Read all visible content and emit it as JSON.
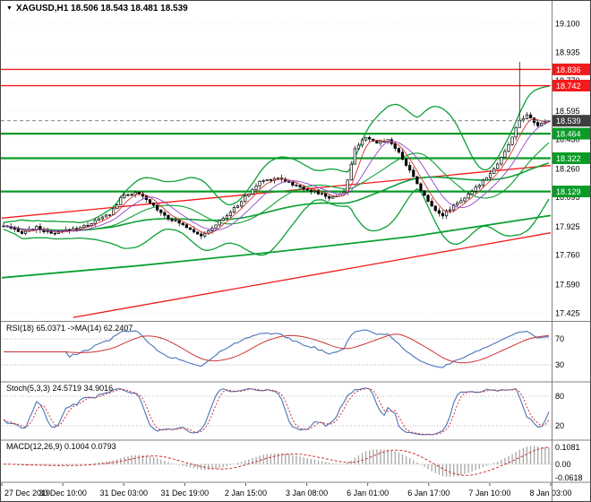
{
  "title": {
    "dropdown_icon": "▼",
    "symbol_ohlc": "XAGUSD,H1 18.506 18.543 18.481 18.539"
  },
  "colors": {
    "background": "#ffffff",
    "panel_border": "#808080",
    "axis_text": "#000000",
    "candle_up_fill": "#ffffff",
    "candle_down_fill": "#000000",
    "candle_border": "#000000",
    "ma_green": "#0da035",
    "resistance": "#f21b1b",
    "support": "#0a9b27",
    "current_badge": "#3f3f3f",
    "current_line": "#888888",
    "thin_red": "#d23333",
    "thin_purple": "#8f46c8",
    "rsi_line": "#4a72b8",
    "stoch_line": "#4a72b8",
    "signal_red": "#cc3333",
    "macd_hist": "#a6a6a6",
    "level_dotted": "#b5b5b5"
  },
  "chart_data": {
    "type": "candlestick",
    "symbol": "XAGUSD",
    "timeframe": "H1",
    "last_ohlc": {
      "open": 18.506,
      "high": 18.543,
      "low": 18.481,
      "close": 18.539
    },
    "bars": 150,
    "price_axis": {
      "range": [
        17.385,
        19.16
      ],
      "ticks": [
        {
          "label": "19.100",
          "value": 19.1
        },
        {
          "label": "18.935",
          "value": 18.935
        },
        {
          "label": "18.770",
          "value": 18.77
        },
        {
          "label": "18.595",
          "value": 18.595
        },
        {
          "label": "18.430",
          "value": 18.43
        },
        {
          "label": "18.260",
          "value": 18.26
        },
        {
          "label": "18.095",
          "value": 18.095
        },
        {
          "label": "17.925",
          "value": 17.925
        },
        {
          "label": "17.760",
          "value": 17.76
        },
        {
          "label": "17.590",
          "value": 17.59
        },
        {
          "label": "17.425",
          "value": 17.425
        }
      ]
    },
    "badges": [
      {
        "label": "18.836",
        "value": 18.836,
        "color": "#f21b1b"
      },
      {
        "label": "18.742",
        "value": 18.742,
        "color": "#f21b1b"
      },
      {
        "label": "18.539",
        "value": 18.539,
        "color": "#3f3f3f"
      },
      {
        "label": "18.464",
        "value": 18.464,
        "color": "#0a9b27"
      },
      {
        "label": "18.322",
        "value": 18.322,
        "color": "#0a9b27"
      },
      {
        "label": "18.129",
        "value": 18.129,
        "color": "#0a9b27"
      }
    ],
    "levels": {
      "resistance": [
        18.836,
        18.742
      ],
      "support": [
        18.464,
        18.322,
        18.129
      ],
      "current": 18.539
    },
    "trendlines": [
      {
        "from": [
          0.0,
          17.975
        ],
        "to": [
          1.0,
          18.28
        ]
      },
      {
        "from": [
          0.13,
          17.4
        ],
        "to": [
          1.0,
          17.89
        ]
      }
    ],
    "slow_ma_anchors": [
      [
        0.0,
        17.63
      ],
      [
        0.25,
        17.7
      ],
      [
        0.5,
        17.78
      ],
      [
        0.75,
        17.87
      ],
      [
        1.0,
        17.99
      ]
    ],
    "price_path_anchors": [
      [
        0.0,
        17.93
      ],
      [
        0.03,
        17.89
      ],
      [
        0.06,
        17.92
      ],
      [
        0.09,
        17.88
      ],
      [
        0.11,
        17.9
      ],
      [
        0.15,
        17.93
      ],
      [
        0.195,
        18.0
      ],
      [
        0.22,
        18.11
      ],
      [
        0.245,
        18.12
      ],
      [
        0.27,
        18.06
      ],
      [
        0.3,
        17.98
      ],
      [
        0.333,
        17.93
      ],
      [
        0.366,
        17.87
      ],
      [
        0.39,
        17.94
      ],
      [
        0.42,
        18.02
      ],
      [
        0.447,
        18.11
      ],
      [
        0.472,
        18.19
      ],
      [
        0.505,
        18.21
      ],
      [
        0.537,
        18.16
      ],
      [
        0.57,
        18.13
      ],
      [
        0.6,
        18.09
      ],
      [
        0.626,
        18.13
      ],
      [
        0.645,
        18.38
      ],
      [
        0.66,
        18.44
      ],
      [
        0.683,
        18.41
      ],
      [
        0.707,
        18.43
      ],
      [
        0.732,
        18.32
      ],
      [
        0.756,
        18.19
      ],
      [
        0.78,
        18.06
      ],
      [
        0.805,
        17.99
      ],
      [
        0.829,
        18.06
      ],
      [
        0.854,
        18.11
      ],
      [
        0.878,
        18.19
      ],
      [
        0.902,
        18.27
      ],
      [
        0.927,
        18.4
      ],
      [
        0.943,
        18.53
      ],
      [
        0.962,
        18.57
      ],
      [
        0.978,
        18.51
      ],
      [
        1.0,
        18.539
      ]
    ],
    "spikes": [
      {
        "f": 0.945,
        "high": 18.88
      }
    ],
    "time_axis": {
      "labels": [
        "27 Dec 2019",
        "30 Dec 10:00",
        "31 Dec 03:00",
        "31 Dec 19:00",
        "2 Jan 15:00",
        "3 Jan 08:00",
        "6 Jan 01:00",
        "6 Jan 17:00",
        "7 Jan 10:00",
        "8 Jan 03:00"
      ]
    },
    "indicators": {
      "rsi": {
        "label": "RSI(18) 65.0371 ->MA(14) 62.2407",
        "period": 18,
        "ma_period": 14,
        "levels": [
          70,
          30
        ]
      },
      "stoch": {
        "label": "Stoch(5,3,3) 24.5719 34.9016",
        "k": 5,
        "slowing": 3,
        "d": 3,
        "levels": [
          80,
          20
        ]
      },
      "macd": {
        "label": "MACD(12,26,9) 0.1004 0.0793",
        "fast": 12,
        "slow": 26,
        "signal": 9,
        "axis_labels": [
          "0.1081",
          "0.00",
          "-0.0618"
        ]
      }
    }
  }
}
